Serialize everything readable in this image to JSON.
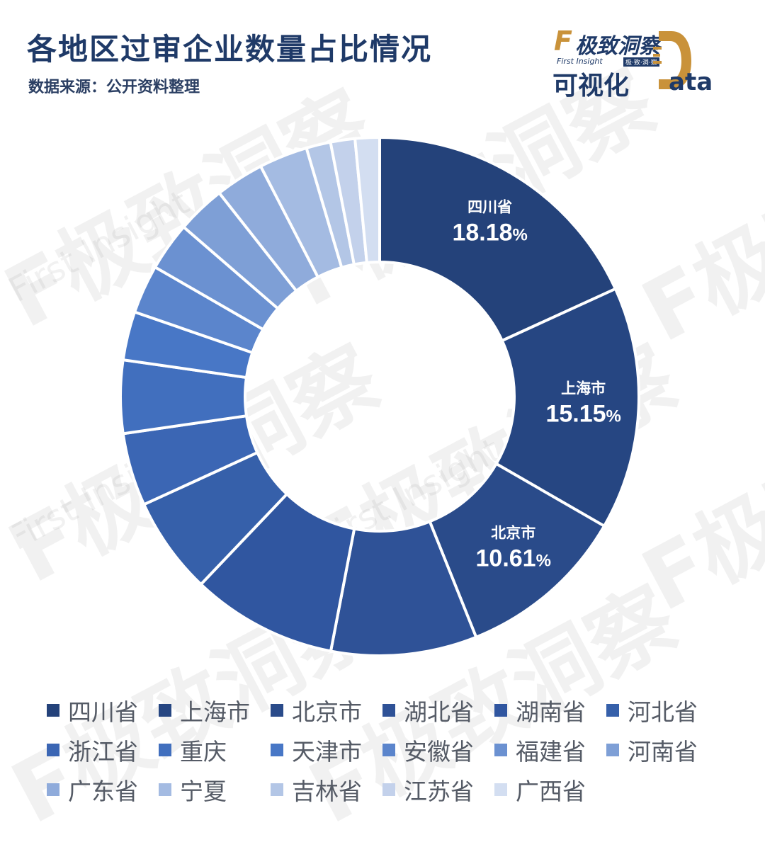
{
  "header": {
    "title": "各地区过审企业数量占比情况",
    "source": "数据来源：公开资料整理"
  },
  "brand": {
    "logo_letter": "F",
    "name": "极致洞察",
    "subtitle": "First Insight",
    "tag": "极·致·洞·察",
    "visual_label": "可视化",
    "data_letters": "ata",
    "accent_color": "#c9923a",
    "primary_color": "#1f3a68"
  },
  "watermark": {
    "text": "F极致洞察",
    "sub": "First Insight"
  },
  "chart_data": {
    "type": "pie",
    "style": "donut",
    "categories": [
      "四川省",
      "上海市",
      "北京市",
      "湖北省",
      "湖南省",
      "河北省",
      "浙江省",
      "重庆",
      "天津市",
      "安徽省",
      "福建省",
      "河南省",
      "广东省",
      "宁夏",
      "吉林省",
      "江苏省",
      "广西省"
    ],
    "values": [
      18.18,
      15.15,
      10.61,
      9.09,
      9.09,
      6.06,
      4.55,
      4.55,
      3.03,
      3.03,
      3.03,
      3.03,
      3.03,
      3.03,
      1.52,
      1.52,
      1.52
    ],
    "colors": [
      "#24427a",
      "#264682",
      "#2a4b8a",
      "#2f5297",
      "#3056a0",
      "#3660aa",
      "#3b66b4",
      "#416fbe",
      "#4877c6",
      "#5b85cc",
      "#6b91d1",
      "#7e9fd6",
      "#8fabdb",
      "#a4bbe2",
      "#b3c6e6",
      "#c3d1eb",
      "#d3def1"
    ],
    "data_labels": [
      {
        "name": "四川省",
        "value": "18.18",
        "unit": "%"
      },
      {
        "name": "上海市",
        "value": "15.15",
        "unit": "%"
      },
      {
        "name": "北京市",
        "value": "10.61",
        "unit": "%"
      }
    ],
    "legend_position": "bottom"
  }
}
